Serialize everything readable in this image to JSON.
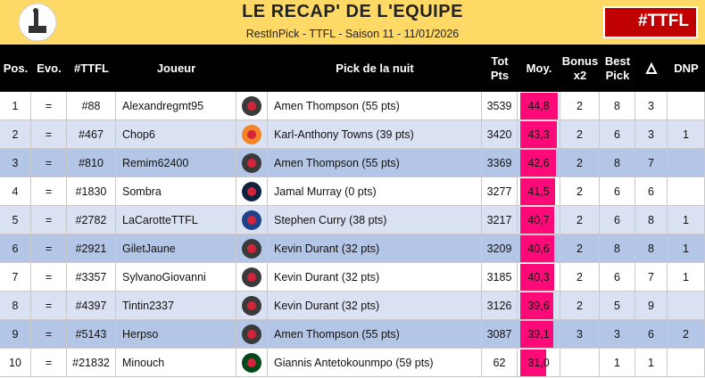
{
  "header": {
    "title": "LE RECAP' DE L'EQUIPE",
    "subtitle": "RestInPick - TTFL - Saison 11 - 11/01/2026",
    "badge": "#TTFL"
  },
  "table": {
    "columns": [
      "Pos.",
      "Evo.",
      "#TTFL",
      "Joueur",
      null,
      "Pick de la nuit",
      "Tot Pts",
      "Moy.",
      "Bonus x2",
      "Best Pick",
      null,
      "DNP"
    ],
    "bar_color": "#ff0a78",
    "logo_colors": [
      "#3a3a3a",
      "#f58426",
      "#3a3a3a",
      "#0e2240",
      "#1d428a",
      "#3a3a3a",
      "#3a3a3a",
      "#3a3a3a",
      "#3a3a3a",
      "#00471b"
    ],
    "rows": [
      [
        1,
        "=",
        "#88",
        "Alexandregmt95",
        null,
        "Amen Thompson (55 pts)",
        3539,
        {
          "value": 44.8,
          "label": "44,8"
        },
        2,
        8,
        3,
        null
      ],
      [
        2,
        "=",
        "#467",
        "Chop6",
        null,
        "Karl-Anthony Towns (39 pts)",
        3420,
        {
          "value": 43.3,
          "label": "43,3"
        },
        2,
        6,
        3,
        1
      ],
      [
        3,
        "=",
        "#810",
        "Remim62400",
        null,
        "Amen Thompson (55 pts)",
        3369,
        {
          "value": 42.6,
          "label": "42,6"
        },
        2,
        8,
        7,
        null
      ],
      [
        4,
        "=",
        "#1830",
        "Sombra",
        null,
        "Jamal Murray (0 pts)",
        3277,
        {
          "value": 41.5,
          "label": "41,5"
        },
        2,
        6,
        6,
        null
      ],
      [
        5,
        "=",
        "#2782",
        "LaCarotteTTFL",
        null,
        "Stephen Curry (38 pts)",
        3217,
        {
          "value": 40.7,
          "label": "40,7"
        },
        2,
        6,
        8,
        1
      ],
      [
        6,
        "=",
        "#2921",
        "GiletJaune",
        null,
        "Kevin Durant (32 pts)",
        3209,
        {
          "value": 40.6,
          "label": "40,6"
        },
        2,
        8,
        8,
        1
      ],
      [
        7,
        "=",
        "#3357",
        "SylvanoGiovanni",
        null,
        "Kevin Durant (32 pts)",
        3185,
        {
          "value": 40.3,
          "label": "40,3"
        },
        2,
        6,
        7,
        1
      ],
      [
        8,
        "=",
        "#4397",
        "Tintin2337",
        null,
        "Kevin Durant (32 pts)",
        3126,
        {
          "value": 39.6,
          "label": "39,6"
        },
        2,
        5,
        9,
        null
      ],
      [
        9,
        "=",
        "#5143",
        "Herpso",
        null,
        "Amen Thompson (55 pts)",
        3087,
        {
          "value": 39.1,
          "label": "39,1"
        },
        3,
        3,
        6,
        2
      ],
      [
        10,
        "=",
        "#21832",
        "Minouch",
        null,
        "Giannis Antetokounmpo (59 pts)",
        62,
        {
          "value": 31.0,
          "label": "31,0"
        },
        null,
        1,
        1,
        null
      ]
    ]
  }
}
